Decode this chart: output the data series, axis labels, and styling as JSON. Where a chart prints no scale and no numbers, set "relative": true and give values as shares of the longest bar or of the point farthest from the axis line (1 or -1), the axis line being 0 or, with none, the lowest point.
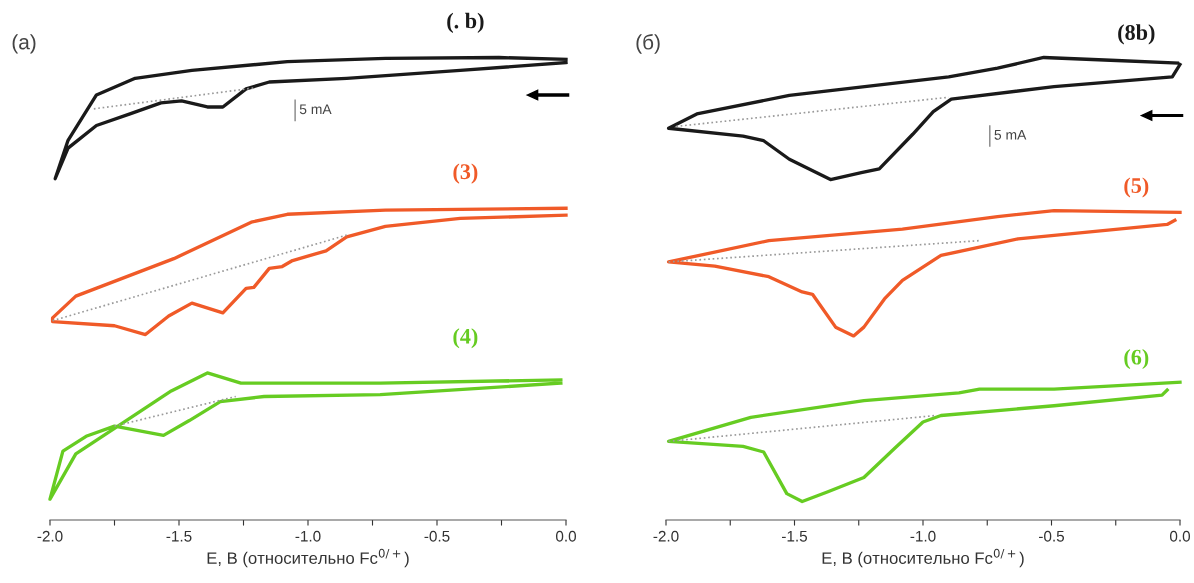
{
  "chart_data": [
    {
      "type": "line",
      "title": "(a)",
      "xlabel": "E, В (относительно Fc$^{0/+}$)",
      "relative": true,
      "tick_labels": "x",
      "grid": false,
      "legend": false,
      "marker": "none",
      "line_style": "solid",
      "xlim": [
        -2.0,
        0.0
      ],
      "xticks": [
        {
          "value": -2.0,
          "label": "-2.0"
        },
        {
          "value": -1.75,
          "label": null
        },
        {
          "value": -1.5,
          "label": "-1.5"
        },
        {
          "value": -1.25,
          "label": null
        },
        {
          "value": -1.0,
          "label": "-1.0"
        },
        {
          "value": -0.75,
          "label": null
        },
        {
          "value": -0.5,
          "label": "-0.5"
        },
        {
          "value": -0.25,
          "label": null
        },
        {
          "value": 0.0,
          "label": "0.0"
        }
      ],
      "annotations": [
        "5 mA"
      ],
      "series": [
        {
          "name": "(. b)",
          "color": "#1a1a1a",
          "x": [
            0.0,
            -0.41,
            -0.85,
            -1.15,
            -1.24,
            -1.33,
            -1.39,
            -1.49,
            -1.57,
            -1.69,
            -1.82,
            -1.93,
            -1.98,
            -1.93,
            -1.82,
            -1.67,
            -1.45,
            -1.08,
            -0.7,
            -0.26,
            0.0
          ],
          "values": [
            0.989,
            0.972,
            0.955,
            0.947,
            0.932,
            0.893,
            0.893,
            0.906,
            0.902,
            0.878,
            0.853,
            0.804,
            0.738,
            0.821,
            0.919,
            0.955,
            0.972,
            0.991,
            0.998,
            1.0,
            0.996
          ]
        },
        {
          "color": "#999999",
          "line_style": "dotted",
          "x": [
            -1.83,
            -1.21
          ],
          "values": [
            0.889,
            0.934
          ]
        },
        {
          "name": "(3)",
          "color": "#f05a28",
          "x": [
            0.0,
            -0.41,
            -0.7,
            -0.85,
            -0.93,
            -1.06,
            -1.1,
            -1.15,
            -1.21,
            -1.24,
            -1.33,
            -1.45,
            -1.54,
            -1.63,
            -1.75,
            -1.99,
            -1.99,
            -1.9,
            -1.52,
            -1.22,
            -1.08,
            -0.7,
            0.0
          ],
          "values": [
            0.659,
            0.652,
            0.635,
            0.612,
            0.582,
            0.561,
            0.548,
            0.544,
            0.503,
            0.501,
            0.448,
            0.469,
            0.441,
            0.401,
            0.42,
            0.429,
            0.437,
            0.484,
            0.565,
            0.644,
            0.661,
            0.67,
            0.674
          ]
        },
        {
          "color": "#999999",
          "line_style": "dotted",
          "x": [
            -1.99,
            -0.85
          ],
          "values": [
            0.431,
            0.616
          ]
        },
        {
          "name": "(4)",
          "color": "#66cc22",
          "x": [
            -0.02,
            -0.72,
            -1.17,
            -1.34,
            -1.46,
            -1.56,
            -1.75,
            -1.86,
            -1.95,
            -2.0,
            -1.9,
            -1.75,
            -1.53,
            -1.39,
            -1.26,
            -0.72,
            -0.02
          ],
          "values": [
            0.296,
            0.271,
            0.267,
            0.256,
            0.215,
            0.183,
            0.203,
            0.181,
            0.149,
            0.045,
            0.143,
            0.198,
            0.279,
            0.318,
            0.296,
            0.296,
            0.303
          ]
        },
        {
          "color": "#999999",
          "line_style": "dotted",
          "x": [
            -1.75,
            -1.28
          ],
          "values": [
            0.203,
            0.267
          ]
        }
      ]
    },
    {
      "type": "line",
      "title": "(б)",
      "xlabel": "E, В (относительно Fc$^{0/+}$)",
      "relative": true,
      "tick_labels": "x",
      "grid": false,
      "legend": false,
      "marker": "none",
      "line_style": "solid",
      "xlim": [
        -2.0,
        0.0
      ],
      "xticks": [
        {
          "value": -2.0,
          "label": "-2.0"
        },
        {
          "value": -1.75,
          "label": null
        },
        {
          "value": -1.5,
          "label": "-1.5"
        },
        {
          "value": -1.25,
          "label": null
        },
        {
          "value": -1.0,
          "label": "-1.0"
        },
        {
          "value": -0.75,
          "label": null
        },
        {
          "value": -0.5,
          "label": "-0.5"
        },
        {
          "value": -0.25,
          "label": null
        },
        {
          "value": 0.0,
          "label": "0.0"
        }
      ],
      "annotations": [
        "5 mA"
      ],
      "series": [
        {
          "name": "(8b)",
          "color": "#1a1a1a",
          "x": [
            0.0,
            -0.03,
            -0.49,
            -0.89,
            -0.96,
            -1.04,
            -1.17,
            -1.24,
            -1.36,
            -1.52,
            -1.62,
            -1.7,
            -1.99,
            -1.88,
            -1.52,
            -0.9,
            -0.71,
            -0.53,
            -0.27,
            -0.01
          ],
          "values": [
            0.985,
            0.958,
            0.937,
            0.91,
            0.883,
            0.834,
            0.759,
            0.751,
            0.736,
            0.78,
            0.82,
            0.83,
            0.847,
            0.878,
            0.918,
            0.958,
            0.977,
            1.0,
            0.994,
            0.988
          ]
        },
        {
          "color": "#999999",
          "line_style": "dotted",
          "x": [
            -1.96,
            -0.9
          ],
          "values": [
            0.851,
            0.914
          ]
        },
        {
          "name": "(5)",
          "color": "#f05a28",
          "x": [
            -0.02,
            -0.05,
            -0.63,
            -0.93,
            -1.08,
            -1.15,
            -1.23,
            -1.27,
            -1.34,
            -1.43,
            -1.47,
            -1.6,
            -1.81,
            -1.99,
            -1.6,
            -1.08,
            -0.71,
            -0.49,
            0.0
          ],
          "values": [
            0.648,
            0.639,
            0.608,
            0.572,
            0.518,
            0.478,
            0.417,
            0.398,
            0.417,
            0.488,
            0.493,
            0.526,
            0.549,
            0.558,
            0.604,
            0.629,
            0.656,
            0.669,
            0.665
          ]
        },
        {
          "color": "#999999",
          "line_style": "dotted",
          "x": [
            -1.99,
            -0.78
          ],
          "values": [
            0.558,
            0.604
          ]
        },
        {
          "name": "(6)",
          "color": "#66cc22",
          "x": [
            -0.05,
            -0.07,
            -0.49,
            -0.93,
            -1.0,
            -1.11,
            -1.23,
            -1.37,
            -1.47,
            -1.53,
            -1.62,
            -1.7,
            -1.99,
            -1.67,
            -1.23,
            -0.86,
            -0.78,
            -0.49,
            0.0
          ],
          "values": [
            0.281,
            0.27,
            0.247,
            0.226,
            0.212,
            0.155,
            0.092,
            0.061,
            0.04,
            0.057,
            0.147,
            0.159,
            0.17,
            0.222,
            0.258,
            0.275,
            0.283,
            0.283,
            0.298
          ]
        },
        {
          "color": "#999999",
          "line_style": "dotted",
          "x": [
            -1.99,
            -0.95
          ],
          "values": [
            0.17,
            0.226
          ]
        }
      ]
    }
  ]
}
